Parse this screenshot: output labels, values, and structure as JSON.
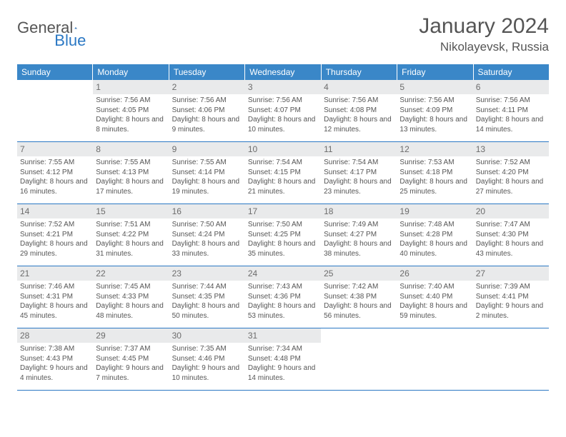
{
  "brand": {
    "part1": "General",
    "part2": "Blue"
  },
  "title": "January 2024",
  "location": "Nikolayevsk, Russia",
  "colors": {
    "header_bg": "#3a87c8",
    "header_text": "#ffffff",
    "daynum_bg": "#e9eaeb",
    "rule": "#2b78c4",
    "brand_blue": "#2b78c4",
    "text": "#555555"
  },
  "dow": [
    "Sunday",
    "Monday",
    "Tuesday",
    "Wednesday",
    "Thursday",
    "Friday",
    "Saturday"
  ],
  "weeks": [
    [
      {
        "n": "",
        "sunrise": "",
        "sunset": "",
        "daylight": ""
      },
      {
        "n": "1",
        "sunrise": "Sunrise: 7:56 AM",
        "sunset": "Sunset: 4:05 PM",
        "daylight": "Daylight: 8 hours and 8 minutes."
      },
      {
        "n": "2",
        "sunrise": "Sunrise: 7:56 AM",
        "sunset": "Sunset: 4:06 PM",
        "daylight": "Daylight: 8 hours and 9 minutes."
      },
      {
        "n": "3",
        "sunrise": "Sunrise: 7:56 AM",
        "sunset": "Sunset: 4:07 PM",
        "daylight": "Daylight: 8 hours and 10 minutes."
      },
      {
        "n": "4",
        "sunrise": "Sunrise: 7:56 AM",
        "sunset": "Sunset: 4:08 PM",
        "daylight": "Daylight: 8 hours and 12 minutes."
      },
      {
        "n": "5",
        "sunrise": "Sunrise: 7:56 AM",
        "sunset": "Sunset: 4:09 PM",
        "daylight": "Daylight: 8 hours and 13 minutes."
      },
      {
        "n": "6",
        "sunrise": "Sunrise: 7:56 AM",
        "sunset": "Sunset: 4:11 PM",
        "daylight": "Daylight: 8 hours and 14 minutes."
      }
    ],
    [
      {
        "n": "7",
        "sunrise": "Sunrise: 7:55 AM",
        "sunset": "Sunset: 4:12 PM",
        "daylight": "Daylight: 8 hours and 16 minutes."
      },
      {
        "n": "8",
        "sunrise": "Sunrise: 7:55 AM",
        "sunset": "Sunset: 4:13 PM",
        "daylight": "Daylight: 8 hours and 17 minutes."
      },
      {
        "n": "9",
        "sunrise": "Sunrise: 7:55 AM",
        "sunset": "Sunset: 4:14 PM",
        "daylight": "Daylight: 8 hours and 19 minutes."
      },
      {
        "n": "10",
        "sunrise": "Sunrise: 7:54 AM",
        "sunset": "Sunset: 4:15 PM",
        "daylight": "Daylight: 8 hours and 21 minutes."
      },
      {
        "n": "11",
        "sunrise": "Sunrise: 7:54 AM",
        "sunset": "Sunset: 4:17 PM",
        "daylight": "Daylight: 8 hours and 23 minutes."
      },
      {
        "n": "12",
        "sunrise": "Sunrise: 7:53 AM",
        "sunset": "Sunset: 4:18 PM",
        "daylight": "Daylight: 8 hours and 25 minutes."
      },
      {
        "n": "13",
        "sunrise": "Sunrise: 7:52 AM",
        "sunset": "Sunset: 4:20 PM",
        "daylight": "Daylight: 8 hours and 27 minutes."
      }
    ],
    [
      {
        "n": "14",
        "sunrise": "Sunrise: 7:52 AM",
        "sunset": "Sunset: 4:21 PM",
        "daylight": "Daylight: 8 hours and 29 minutes."
      },
      {
        "n": "15",
        "sunrise": "Sunrise: 7:51 AM",
        "sunset": "Sunset: 4:22 PM",
        "daylight": "Daylight: 8 hours and 31 minutes."
      },
      {
        "n": "16",
        "sunrise": "Sunrise: 7:50 AM",
        "sunset": "Sunset: 4:24 PM",
        "daylight": "Daylight: 8 hours and 33 minutes."
      },
      {
        "n": "17",
        "sunrise": "Sunrise: 7:50 AM",
        "sunset": "Sunset: 4:25 PM",
        "daylight": "Daylight: 8 hours and 35 minutes."
      },
      {
        "n": "18",
        "sunrise": "Sunrise: 7:49 AM",
        "sunset": "Sunset: 4:27 PM",
        "daylight": "Daylight: 8 hours and 38 minutes."
      },
      {
        "n": "19",
        "sunrise": "Sunrise: 7:48 AM",
        "sunset": "Sunset: 4:28 PM",
        "daylight": "Daylight: 8 hours and 40 minutes."
      },
      {
        "n": "20",
        "sunrise": "Sunrise: 7:47 AM",
        "sunset": "Sunset: 4:30 PM",
        "daylight": "Daylight: 8 hours and 43 minutes."
      }
    ],
    [
      {
        "n": "21",
        "sunrise": "Sunrise: 7:46 AM",
        "sunset": "Sunset: 4:31 PM",
        "daylight": "Daylight: 8 hours and 45 minutes."
      },
      {
        "n": "22",
        "sunrise": "Sunrise: 7:45 AM",
        "sunset": "Sunset: 4:33 PM",
        "daylight": "Daylight: 8 hours and 48 minutes."
      },
      {
        "n": "23",
        "sunrise": "Sunrise: 7:44 AM",
        "sunset": "Sunset: 4:35 PM",
        "daylight": "Daylight: 8 hours and 50 minutes."
      },
      {
        "n": "24",
        "sunrise": "Sunrise: 7:43 AM",
        "sunset": "Sunset: 4:36 PM",
        "daylight": "Daylight: 8 hours and 53 minutes."
      },
      {
        "n": "25",
        "sunrise": "Sunrise: 7:42 AM",
        "sunset": "Sunset: 4:38 PM",
        "daylight": "Daylight: 8 hours and 56 minutes."
      },
      {
        "n": "26",
        "sunrise": "Sunrise: 7:40 AM",
        "sunset": "Sunset: 4:40 PM",
        "daylight": "Daylight: 8 hours and 59 minutes."
      },
      {
        "n": "27",
        "sunrise": "Sunrise: 7:39 AM",
        "sunset": "Sunset: 4:41 PM",
        "daylight": "Daylight: 9 hours and 2 minutes."
      }
    ],
    [
      {
        "n": "28",
        "sunrise": "Sunrise: 7:38 AM",
        "sunset": "Sunset: 4:43 PM",
        "daylight": "Daylight: 9 hours and 4 minutes."
      },
      {
        "n": "29",
        "sunrise": "Sunrise: 7:37 AM",
        "sunset": "Sunset: 4:45 PM",
        "daylight": "Daylight: 9 hours and 7 minutes."
      },
      {
        "n": "30",
        "sunrise": "Sunrise: 7:35 AM",
        "sunset": "Sunset: 4:46 PM",
        "daylight": "Daylight: 9 hours and 10 minutes."
      },
      {
        "n": "31",
        "sunrise": "Sunrise: 7:34 AM",
        "sunset": "Sunset: 4:48 PM",
        "daylight": "Daylight: 9 hours and 14 minutes."
      },
      {
        "n": "",
        "sunrise": "",
        "sunset": "",
        "daylight": ""
      },
      {
        "n": "",
        "sunrise": "",
        "sunset": "",
        "daylight": ""
      },
      {
        "n": "",
        "sunrise": "",
        "sunset": "",
        "daylight": ""
      }
    ]
  ]
}
